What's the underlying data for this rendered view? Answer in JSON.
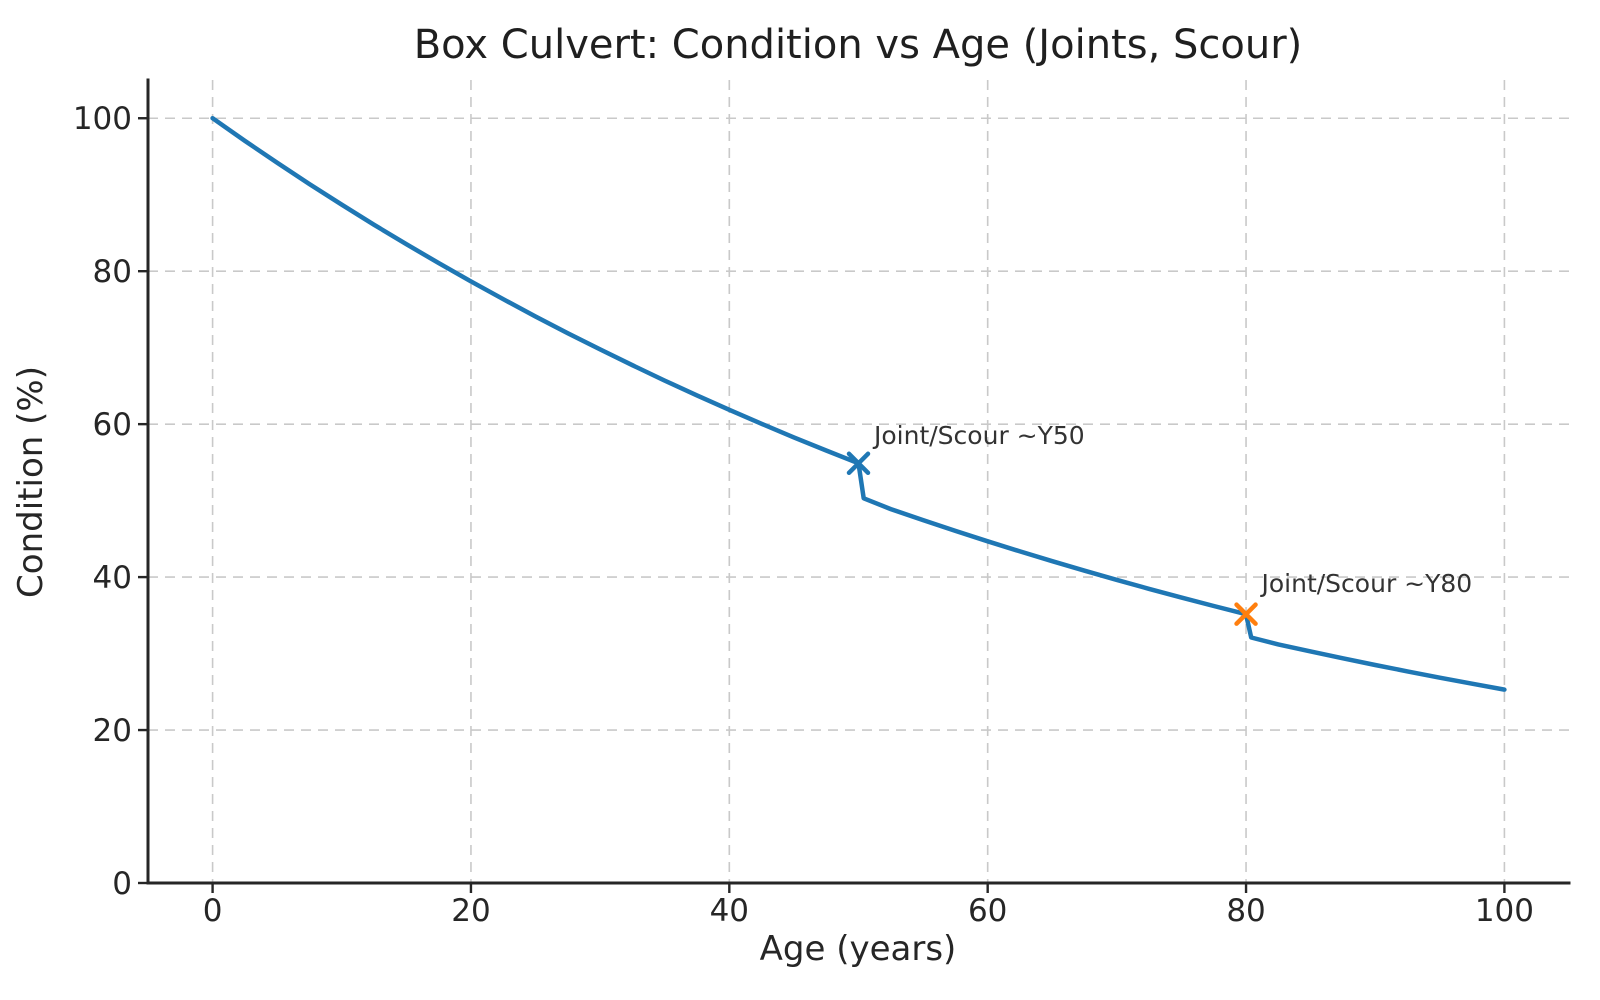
{
  "chart_data": {
    "type": "line",
    "title": "Box Culvert: Condition vs Age (Joints, Scour)",
    "xlabel": "Age (years)",
    "ylabel": "Condition (%)",
    "xlim": [
      -5,
      105
    ],
    "ylim": [
      0,
      105
    ],
    "xticks": [
      0,
      20,
      40,
      60,
      80,
      100
    ],
    "yticks": [
      0,
      20,
      40,
      60,
      80,
      100
    ],
    "grid": true,
    "legend": false,
    "series": [
      {
        "name": "Condition",
        "color": "#1f77b4",
        "points": [
          [
            0,
            100.0
          ],
          [
            2.5,
            97.04
          ],
          [
            5,
            94.18
          ],
          [
            7.5,
            91.39
          ],
          [
            10,
            88.69
          ],
          [
            12.5,
            86.07
          ],
          [
            15,
            83.53
          ],
          [
            17.5,
            81.06
          ],
          [
            20,
            78.66
          ],
          [
            22.5,
            76.34
          ],
          [
            25,
            74.08
          ],
          [
            27.5,
            71.89
          ],
          [
            30,
            69.77
          ],
          [
            32.5,
            67.71
          ],
          [
            35,
            65.7
          ],
          [
            37.5,
            63.76
          ],
          [
            40,
            61.88
          ],
          [
            42.5,
            60.05
          ],
          [
            45,
            58.27
          ],
          [
            47.5,
            56.55
          ],
          [
            50,
            54.88
          ],
          [
            50.4,
            50.3
          ],
          [
            52.5,
            48.89
          ],
          [
            55,
            47.45
          ],
          [
            57.5,
            46.04
          ],
          [
            60,
            44.68
          ],
          [
            62.5,
            43.36
          ],
          [
            65,
            42.08
          ],
          [
            67.5,
            40.84
          ],
          [
            70,
            39.63
          ],
          [
            72.5,
            38.46
          ],
          [
            75,
            37.32
          ],
          [
            77.5,
            36.22
          ],
          [
            80,
            35.15
          ],
          [
            80.4,
            32.1
          ],
          [
            82.5,
            31.2
          ],
          [
            85,
            30.28
          ],
          [
            87.5,
            29.38
          ],
          [
            90,
            28.51
          ],
          [
            92.5,
            27.67
          ],
          [
            95,
            26.85
          ],
          [
            97.5,
            26.06
          ],
          [
            100,
            25.29
          ]
        ]
      }
    ],
    "event_markers": [
      {
        "x": 50,
        "y": 54.88,
        "shape": "x",
        "color": "#1f77b4",
        "event": "Joint/Scour ~Y50"
      },
      {
        "x": 80,
        "y": 35.15,
        "shape": "x",
        "color": "#ff7f0e",
        "event": "Joint/Scour ~Y80"
      }
    ],
    "annotations": [
      {
        "text": "Joint/Scour ~Y50",
        "x": 51.2,
        "y": 58.6
      },
      {
        "text": "Joint/Scour ~Y80",
        "x": 81.2,
        "y": 39.2
      }
    ],
    "style": {
      "line_color": "#1f77b4",
      "marker_colors": [
        "#1f77b4",
        "#ff7f0e"
      ],
      "grid_color": "#c9c9c9",
      "axis_color": "#262626",
      "text_color": "#262626",
      "annotation_color": "#333333",
      "background": "#ffffff"
    }
  }
}
